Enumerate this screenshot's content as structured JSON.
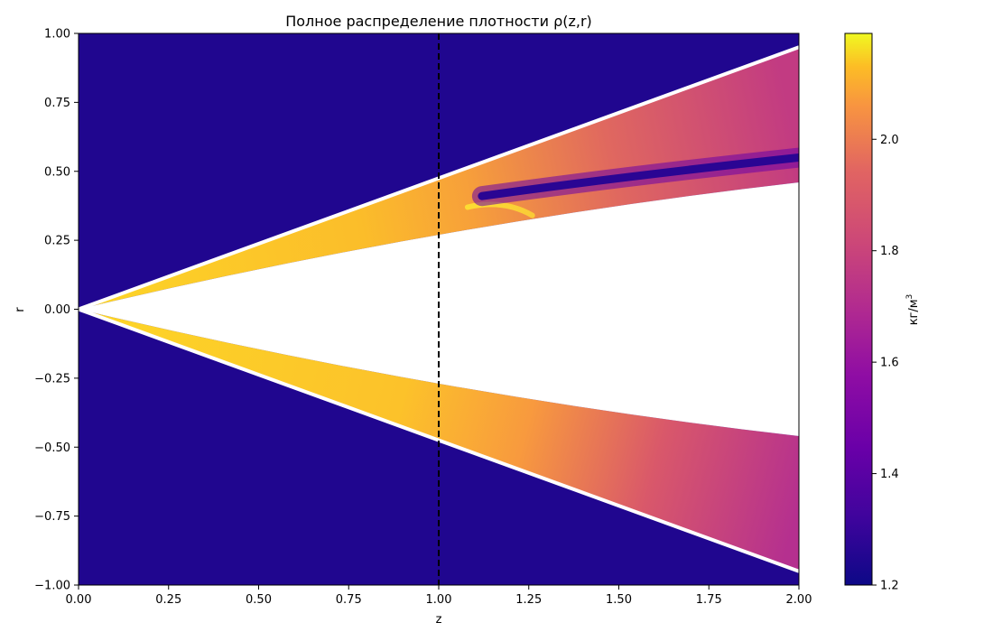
{
  "chart_data": {
    "type": "heatmap",
    "title": "Полное распределение плотности ρ(z,r)",
    "xlabel": "z",
    "ylabel": "r",
    "xlim": [
      0.0,
      2.0
    ],
    "ylim": [
      -1.0,
      1.0
    ],
    "x_ticks": [
      "0.00",
      "0.25",
      "0.50",
      "0.75",
      "1.00",
      "1.25",
      "1.50",
      "1.75",
      "2.00"
    ],
    "y_ticks": [
      "1.00",
      "0.75",
      "0.50",
      "0.25",
      "0.00",
      "−0.25",
      "−0.50",
      "−0.75",
      "−1.00"
    ],
    "colormap": "plasma",
    "colorbar": {
      "label": "кг/м",
      "label_superscript": "3",
      "range": [
        1.2,
        2.19
      ],
      "ticks": [
        "2.0",
        "1.8",
        "1.6",
        "1.4",
        "1.2"
      ]
    },
    "background_density": 1.2,
    "upper_shock_line": {
      "z": [
        0.0,
        2.0
      ],
      "r": [
        0.0,
        0.95
      ]
    },
    "lower_shock_line": {
      "z": [
        0.0,
        2.0
      ],
      "r": [
        0.0,
        -0.95
      ]
    },
    "body_surface_upper": {
      "z": [
        0.0,
        1.0,
        2.0
      ],
      "r": [
        0.0,
        0.27,
        0.46
      ]
    },
    "body_surface_lower": {
      "z": [
        0.0,
        1.0,
        2.0
      ],
      "r": [
        0.0,
        -0.27,
        -0.46
      ]
    },
    "density_trough": {
      "z": [
        1.12,
        1.5,
        2.0
      ],
      "r": [
        0.41,
        0.48,
        0.55
      ],
      "value": 1.25
    },
    "vertical_marker_z": 1.0
  }
}
